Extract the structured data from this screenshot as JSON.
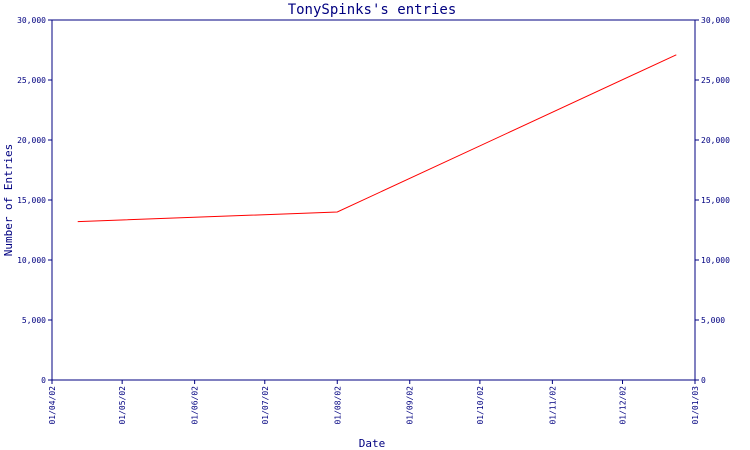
{
  "chart_data": {
    "type": "line",
    "title": "TonySpinks's entries",
    "xlabel": "Date",
    "ylabel": "Number of Entries",
    "ylim": [
      0,
      30000
    ],
    "y_ticks": [
      0,
      5000,
      10000,
      15000,
      20000,
      25000,
      30000
    ],
    "y_tick_labels": [
      "0",
      "5,000",
      "10,000",
      "15,000",
      "20,000",
      "25,000",
      "30,000"
    ],
    "x_ticks": [
      "2002-04-01",
      "2002-05-01",
      "2002-06-01",
      "2002-07-01",
      "2002-08-01",
      "2002-09-01",
      "2002-10-01",
      "2002-11-01",
      "2002-12-01",
      "2003-01-01"
    ],
    "x_tick_labels": [
      "01/04/02",
      "01/05/02",
      "01/06/02",
      "01/07/02",
      "01/08/02",
      "01/09/02",
      "01/10/02",
      "01/11/02",
      "01/12/02",
      "01/01/03"
    ],
    "xlim": [
      "2002-04-01",
      "2003-01-01"
    ],
    "series": [
      {
        "color": "#ff0000",
        "x": [
          "2002-04-12",
          "2002-08-01",
          "2002-12-24"
        ],
        "values": [
          13200,
          14000,
          27100
        ]
      }
    ],
    "axis_color": "#000080",
    "grid": false,
    "right_axis_mirrors_left": true
  }
}
